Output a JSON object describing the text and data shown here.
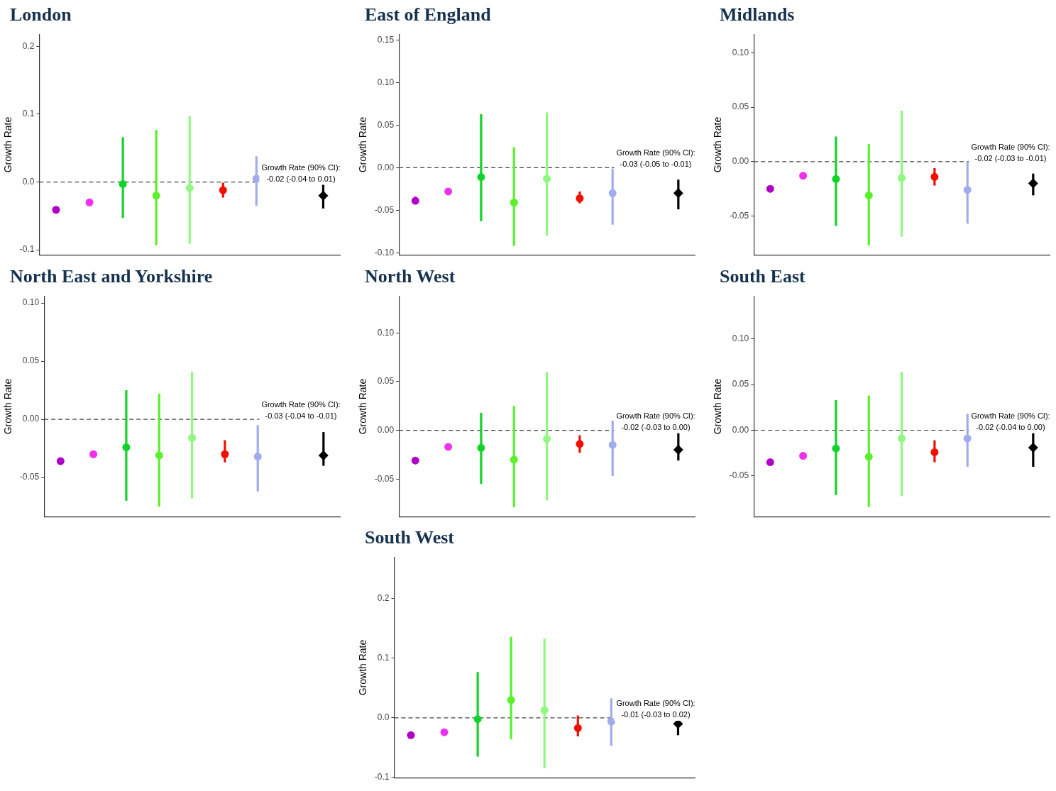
{
  "chart_data": [
    {
      "type": "scatter",
      "title": "London",
      "ylabel": "Growth Rate",
      "categories": [
        null,
        null,
        null,
        null,
        null,
        null,
        null,
        null,
        null
      ],
      "ylim": [
        -0.108,
        0.218
      ],
      "yticks": [
        {
          "value": -0.1,
          "label": "-0.1"
        },
        {
          "value": 0,
          "label": "0.0"
        },
        0.1,
        0.2
      ],
      "tick_labels": "y",
      "marker": "circle",
      "series": [
        {
          "colors": [
            "#b000c8",
            "#f030f0",
            "#11d32a",
            "#5af02a",
            "#90f880",
            "#f01000",
            "#a0acee",
            null,
            null
          ],
          "values": [
            -0.041,
            -0.03,
            -0.003,
            -0.02,
            -0.009,
            -0.012,
            0.005,
            null,
            null
          ],
          "errors": [
            [
              -0.044,
              -0.039
            ],
            null,
            [
              -0.053,
              0.066
            ],
            [
              -0.093,
              0.077
            ],
            [
              -0.091,
              0.097
            ],
            [
              -0.023,
              -0.001
            ],
            [
              -0.035,
              0.038
            ],
            null,
            null
          ]
        },
        {
          "color": "#000000",
          "marker": "diamond",
          "values": [
            null,
            null,
            null,
            null,
            null,
            null,
            null,
            null,
            -0.02
          ],
          "errors": [
            null,
            null,
            null,
            null,
            null,
            null,
            null,
            null,
            [
              -0.039,
              0.002
            ]
          ]
        }
      ],
      "ref_lines": [
        {
          "axis": "y",
          "value": 0,
          "color": "#444444",
          "line_style": "dashed"
        }
      ],
      "annotations": [
        "Growth Rate (90% CI):\n-0.02 (-0.04 to 0.01)"
      ]
    },
    {
      "type": "scatter",
      "title": "East of England",
      "ylabel": "Growth Rate",
      "categories": [
        null,
        null,
        null,
        null,
        null,
        null,
        null,
        null,
        null
      ],
      "ylim": [
        -0.103,
        0.157
      ],
      "yticks": [
        {
          "value": -0.1,
          "label": "-0.10"
        },
        -0.05,
        {
          "value": 0,
          "label": "0.00"
        },
        0.05,
        {
          "value": 0.1,
          "label": "0.10"
        },
        0.15
      ],
      "tick_labels": "y",
      "marker": "circle",
      "series": [
        {
          "colors": [
            "#b000c8",
            "#f030f0",
            "#11d32a",
            "#5af02a",
            "#90f880",
            "#f01000",
            "#a0acee",
            null,
            null
          ],
          "values": [
            -0.039,
            -0.028,
            -0.011,
            -0.041,
            -0.013,
            -0.036,
            -0.03,
            null,
            null
          ],
          "errors": [
            [
              -0.043,
              -0.034
            ],
            null,
            [
              -0.063,
              0.063
            ],
            [
              -0.092,
              0.024
            ],
            [
              -0.08,
              0.065
            ],
            [
              -0.042,
              -0.028
            ],
            [
              -0.067,
              -0.001
            ],
            null,
            null
          ]
        },
        {
          "color": "#000000",
          "marker": "diamond",
          "values": [
            null,
            null,
            null,
            null,
            null,
            null,
            null,
            null,
            -0.03
          ],
          "errors": [
            null,
            null,
            null,
            null,
            null,
            null,
            null,
            null,
            [
              -0.049,
              -0.014
            ]
          ]
        }
      ],
      "ref_lines": [
        {
          "axis": "y",
          "value": 0,
          "color": "#444444",
          "line_style": "dashed"
        }
      ],
      "annotations": [
        "Growth Rate (90% CI):\n-0.03 (-0.05 to -0.01)"
      ]
    },
    {
      "type": "scatter",
      "title": "Midlands",
      "ylabel": "Growth Rate",
      "categories": [
        null,
        null,
        null,
        null,
        null,
        null,
        null,
        null,
        null
      ],
      "ylim": [
        -0.086,
        0.117
      ],
      "yticks": [
        -0.05,
        {
          "value": 0,
          "label": "0.00"
        },
        0.05,
        {
          "value": 0.1,
          "label": "0.10"
        }
      ],
      "tick_labels": "y",
      "marker": "circle",
      "series": [
        {
          "colors": [
            "#b000c8",
            "#f030f0",
            "#11d32a",
            "#5af02a",
            "#90f880",
            "#f01000",
            "#a0acee",
            null,
            null
          ],
          "values": [
            -0.025,
            -0.013,
            -0.016,
            -0.031,
            -0.015,
            -0.014,
            -0.026,
            null,
            null
          ],
          "errors": [
            [
              -0.028,
              -0.022
            ],
            null,
            [
              -0.059,
              0.023
            ],
            [
              -0.077,
              0.016
            ],
            [
              -0.069,
              0.047
            ],
            [
              -0.022,
              -0.006
            ],
            [
              -0.057,
              0.0
            ],
            null,
            null
          ]
        },
        {
          "color": "#000000",
          "marker": "diamond",
          "values": [
            null,
            null,
            null,
            null,
            null,
            null,
            null,
            null,
            -0.02
          ],
          "errors": [
            null,
            null,
            null,
            null,
            null,
            null,
            null,
            null,
            [
              -0.031,
              -0.011
            ]
          ]
        }
      ],
      "ref_lines": [
        {
          "axis": "y",
          "value": 0,
          "color": "#444444",
          "line_style": "dashed"
        }
      ],
      "annotations": [
        "Growth Rate (90% CI):\n-0.02 (-0.03 to -0.01)"
      ]
    },
    {
      "type": "scatter",
      "title": "North East and Yorkshire",
      "ylabel": "Growth Rate",
      "categories": [
        null,
        null,
        null,
        null,
        null,
        null,
        null,
        null,
        null
      ],
      "ylim": [
        -0.084,
        0.106
      ],
      "yticks": [
        -0.05,
        {
          "value": 0,
          "label": "0.00"
        },
        0.05,
        {
          "value": 0.1,
          "label": "0.10"
        }
      ],
      "tick_labels": "y",
      "marker": "circle",
      "series": [
        {
          "colors": [
            "#b000c8",
            "#f030f0",
            "#11d32a",
            "#5af02a",
            "#90f880",
            "#f01000",
            "#a0acee",
            null,
            null
          ],
          "values": [
            -0.036,
            -0.03,
            -0.024,
            -0.031,
            -0.016,
            -0.03,
            -0.032,
            null,
            null
          ],
          "errors": [
            null,
            null,
            [
              -0.07,
              0.025
            ],
            [
              -0.075,
              0.022
            ],
            [
              -0.068,
              0.041
            ],
            [
              -0.037,
              -0.018
            ],
            [
              -0.062,
              -0.005
            ],
            null,
            null
          ]
        },
        {
          "color": "#000000",
          "marker": "diamond",
          "values": [
            null,
            null,
            null,
            null,
            null,
            null,
            null,
            null,
            -0.031
          ],
          "errors": [
            null,
            null,
            null,
            null,
            null,
            null,
            null,
            null,
            [
              -0.04,
              -0.011
            ]
          ]
        }
      ],
      "ref_lines": [
        {
          "axis": "y",
          "value": 0,
          "color": "#444444",
          "line_style": "dashed"
        }
      ],
      "annotations": [
        "Growth Rate (90% CI):\n-0.03 (-0.04 to -0.01)"
      ]
    },
    {
      "type": "scatter",
      "title": "North West",
      "ylabel": "Growth Rate",
      "categories": [
        null,
        null,
        null,
        null,
        null,
        null,
        null,
        null,
        null
      ],
      "ylim": [
        -0.089,
        0.138
      ],
      "yticks": [
        -0.05,
        {
          "value": 0,
          "label": "0.00"
        },
        0.05,
        {
          "value": 0.1,
          "label": "0.10"
        }
      ],
      "tick_labels": "y",
      "marker": "circle",
      "series": [
        {
          "colors": [
            "#b000c8",
            "#f030f0",
            "#11d32a",
            "#5af02a",
            "#90f880",
            "#f01000",
            "#a0acee",
            null,
            null
          ],
          "values": [
            -0.031,
            -0.017,
            -0.018,
            -0.03,
            -0.009,
            -0.014,
            -0.015,
            null,
            null
          ],
          "errors": [
            [
              -0.034,
              -0.028
            ],
            null,
            [
              -0.055,
              0.018
            ],
            [
              -0.079,
              0.025
            ],
            [
              -0.072,
              0.06
            ],
            [
              -0.023,
              -0.005
            ],
            [
              -0.047,
              0.01
            ],
            null,
            null
          ]
        },
        {
          "color": "#000000",
          "marker": "diamond",
          "values": [
            null,
            null,
            null,
            null,
            null,
            null,
            null,
            null,
            -0.02
          ],
          "errors": [
            null,
            null,
            null,
            null,
            null,
            null,
            null,
            null,
            [
              -0.031,
              -0.002
            ]
          ]
        }
      ],
      "ref_lines": [
        {
          "axis": "y",
          "value": 0,
          "color": "#444444",
          "line_style": "dashed"
        }
      ],
      "annotations": [
        "Growth Rate (90% CI):\n-0.02 (-0.03 to 0.00)"
      ]
    },
    {
      "type": "scatter",
      "title": "South East",
      "ylabel": "Growth Rate",
      "categories": [
        null,
        null,
        null,
        null,
        null,
        null,
        null,
        null,
        null
      ],
      "ylim": [
        -0.095,
        0.147
      ],
      "yticks": [
        -0.05,
        {
          "value": 0,
          "label": "0.00"
        },
        0.05,
        {
          "value": 0.1,
          "label": "0.10"
        }
      ],
      "tick_labels": "y",
      "marker": "circle",
      "series": [
        {
          "colors": [
            "#b000c8",
            "#f030f0",
            "#11d32a",
            "#5af02a",
            "#90f880",
            "#f01000",
            "#a0acee",
            null,
            null
          ],
          "values": [
            -0.035,
            -0.028,
            -0.02,
            -0.029,
            -0.009,
            -0.024,
            -0.009,
            null,
            null
          ],
          "errors": [
            null,
            null,
            [
              -0.071,
              0.033
            ],
            [
              -0.084,
              0.038
            ],
            [
              -0.072,
              0.064
            ],
            [
              -0.035,
              -0.011
            ],
            [
              -0.04,
              0.018
            ],
            null,
            null
          ]
        },
        {
          "color": "#000000",
          "marker": "diamond",
          "values": [
            null,
            null,
            null,
            null,
            null,
            null,
            null,
            null,
            -0.019
          ],
          "errors": [
            null,
            null,
            null,
            null,
            null,
            null,
            null,
            null,
            [
              -0.04,
              -0.003
            ]
          ]
        }
      ],
      "ref_lines": [
        {
          "axis": "y",
          "value": 0,
          "color": "#444444",
          "line_style": "dashed"
        }
      ],
      "annotations": [
        "Growth Rate (90% CI):\n-0.02 (-0.04 to 0.00)"
      ]
    },
    {
      "type": "scatter",
      "title": "South West",
      "ylabel": "Growth Rate",
      "categories": [
        null,
        null,
        null,
        null,
        null,
        null,
        null,
        null,
        null
      ],
      "ylim": [
        -0.101,
        0.27
      ],
      "yticks": [
        {
          "value": -0.1,
          "label": "-0.1"
        },
        {
          "value": 0,
          "label": "0.0"
        },
        0.1,
        0.2
      ],
      "tick_labels": "y",
      "marker": "circle",
      "series": [
        {
          "colors": [
            "#b000c8",
            "#f030f0",
            "#11d32a",
            "#5af02a",
            "#90f880",
            "#f01000",
            "#a0acee",
            null,
            null
          ],
          "values": [
            -0.029,
            -0.024,
            -0.002,
            0.03,
            0.013,
            -0.017,
            -0.006,
            null,
            null
          ],
          "errors": [
            null,
            null,
            [
              -0.065,
              0.077
            ],
            [
              -0.036,
              0.136
            ],
            [
              -0.084,
              0.133
            ],
            [
              -0.031,
              0.004
            ],
            [
              -0.047,
              0.033
            ],
            null,
            null
          ]
        },
        {
          "color": "#000000",
          "marker": "diamond",
          "values": [
            null,
            null,
            null,
            null,
            null,
            null,
            null,
            null,
            -0.01
          ],
          "errors": [
            null,
            null,
            null,
            null,
            null,
            null,
            null,
            null,
            [
              -0.029,
              0.011
            ]
          ]
        }
      ],
      "ref_lines": [
        {
          "axis": "y",
          "value": 0,
          "color": "#444444",
          "line_style": "dashed"
        }
      ],
      "annotations": [
        "Growth Rate (90% CI):\n-0.01 (-0.03 to 0.02)"
      ]
    }
  ]
}
